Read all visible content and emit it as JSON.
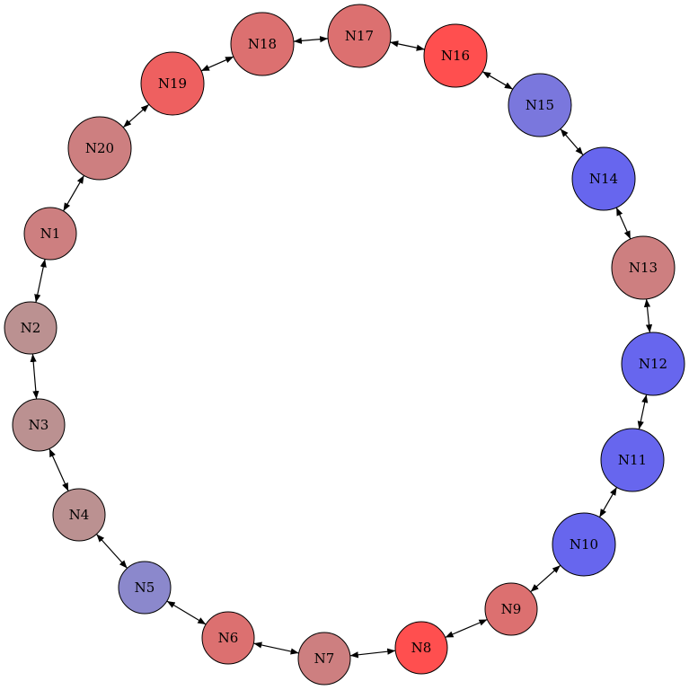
{
  "graph": {
    "nodes": [
      {
        "id": "N1",
        "label": "N1",
        "color": "#cd7f80"
      },
      {
        "id": "N2",
        "label": "N2",
        "color": "#bb9191"
      },
      {
        "id": "N3",
        "label": "N3",
        "color": "#bb9191"
      },
      {
        "id": "N4",
        "label": "N4",
        "color": "#bb9191"
      },
      {
        "id": "N5",
        "label": "N5",
        "color": "#8b88cc"
      },
      {
        "id": "N6",
        "label": "N6",
        "color": "#dc7070"
      },
      {
        "id": "N7",
        "label": "N7",
        "color": "#cd7f80"
      },
      {
        "id": "N8",
        "label": "N8",
        "color": "#ff4f4f"
      },
      {
        "id": "N9",
        "label": "N9",
        "color": "#dc7070"
      },
      {
        "id": "N10",
        "label": "N10",
        "color": "#6766ee"
      },
      {
        "id": "N11",
        "label": "N11",
        "color": "#6766ee"
      },
      {
        "id": "N12",
        "label": "N12",
        "color": "#6766ee"
      },
      {
        "id": "N13",
        "label": "N13",
        "color": "#cd7f80"
      },
      {
        "id": "N14",
        "label": "N14",
        "color": "#6766ee"
      },
      {
        "id": "N15",
        "label": "N15",
        "color": "#7a77dd"
      },
      {
        "id": "N16",
        "label": "N16",
        "color": "#ff4f4f"
      },
      {
        "id": "N17",
        "label": "N17",
        "color": "#dc7070"
      },
      {
        "id": "N18",
        "label": "N18",
        "color": "#dc7070"
      },
      {
        "id": "N19",
        "label": "N19",
        "color": "#ee6060"
      },
      {
        "id": "N20",
        "label": "N20",
        "color": "#cd7f80"
      }
    ],
    "edges": [
      [
        "N1",
        "N2"
      ],
      [
        "N2",
        "N3"
      ],
      [
        "N3",
        "N4"
      ],
      [
        "N4",
        "N5"
      ],
      [
        "N5",
        "N6"
      ],
      [
        "N6",
        "N7"
      ],
      [
        "N7",
        "N8"
      ],
      [
        "N8",
        "N9"
      ],
      [
        "N9",
        "N10"
      ],
      [
        "N10",
        "N11"
      ],
      [
        "N11",
        "N12"
      ],
      [
        "N12",
        "N13"
      ],
      [
        "N13",
        "N14"
      ],
      [
        "N14",
        "N15"
      ],
      [
        "N15",
        "N16"
      ],
      [
        "N16",
        "N17"
      ],
      [
        "N17",
        "N18"
      ],
      [
        "N18",
        "N19"
      ],
      [
        "N19",
        "N20"
      ],
      [
        "N20",
        "N1"
      ]
    ],
    "edge_style": "bidirectional"
  }
}
